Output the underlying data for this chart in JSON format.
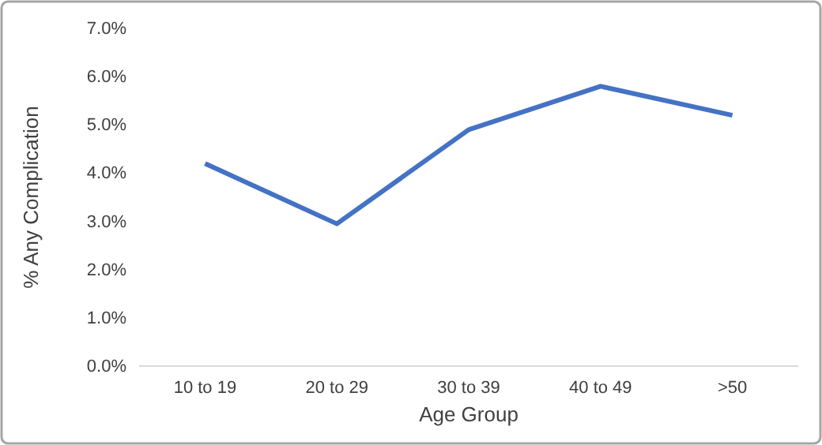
{
  "chart_data": {
    "type": "line",
    "xlabel": "Age Group",
    "ylabel": "% Any Complication",
    "categories": [
      "10 to 19",
      "20 to 29",
      "30 to 39",
      "40 to 49",
      ">50"
    ],
    "series": [
      {
        "color": "#4472c4",
        "values": [
          4.2,
          2.95,
          4.9,
          5.8,
          5.2
        ]
      }
    ],
    "ylim": [
      0,
      7
    ],
    "yticks": [
      {
        "value": 0,
        "label": "0.0%"
      },
      {
        "value": 1,
        "label": "1.0%"
      },
      {
        "value": 2,
        "label": "2.0%"
      },
      {
        "value": 3,
        "label": "3.0%"
      },
      {
        "value": 4,
        "label": "4.0%"
      },
      {
        "value": 5,
        "label": "5.0%"
      },
      {
        "value": 6,
        "label": "6.0%"
      },
      {
        "value": 7,
        "label": "7.0%"
      }
    ],
    "grid": false,
    "marker": "none",
    "line_style": "solid"
  }
}
